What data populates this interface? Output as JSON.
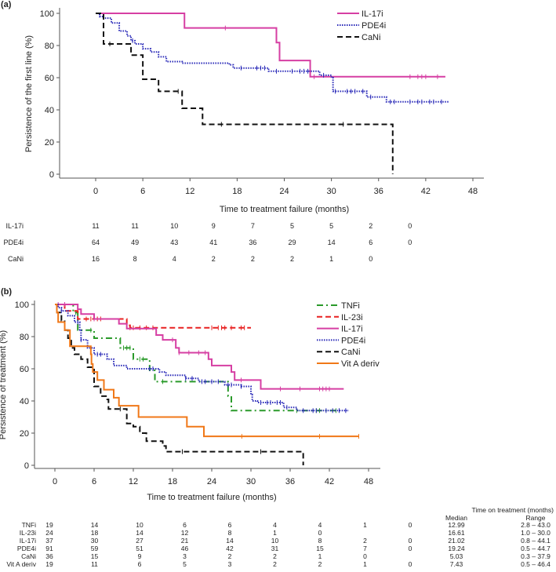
{
  "chart_data": [
    {
      "type": "line",
      "panel_label": "(a)",
      "title": "",
      "xlabel": "Time to treatment failure (months)",
      "ylabel": "Persistence of the first line (%)",
      "xlim": [
        0,
        48
      ],
      "ylim": [
        0,
        100
      ],
      "xticks": [
        0,
        6,
        12,
        18,
        24,
        30,
        36,
        42,
        48
      ],
      "yticks": [
        0,
        20,
        40,
        60,
        80,
        100
      ],
      "legend_position": "top-right",
      "series": [
        {
          "name": "IL-17i",
          "color": "#d63fa3",
          "dash": "solid",
          "end": 44.5,
          "steps": [
            [
              0,
              100
            ],
            [
              11.3,
              90.9
            ],
            [
              23,
              81.8
            ],
            [
              23.4,
              70.7
            ],
            [
              27.3,
              60.6
            ]
          ],
          "censored": [
            16.5,
            27.8,
            40,
            41,
            41.5,
            42,
            43.5
          ]
        },
        {
          "name": "PDE4i",
          "color": "#2a2ab8",
          "dash": "dotted",
          "end": 45,
          "steps": [
            [
              0,
              100
            ],
            [
              0.5,
              98
            ],
            [
              1,
              97
            ],
            [
              2,
              94
            ],
            [
              3,
              89
            ],
            [
              4,
              86
            ],
            [
              4.5,
              83
            ],
            [
              5,
              81
            ],
            [
              6,
              78
            ],
            [
              7,
              76
            ],
            [
              8,
              73
            ],
            [
              9,
              70
            ],
            [
              11,
              69
            ],
            [
              17,
              68
            ],
            [
              17.5,
              66
            ],
            [
              22,
              64
            ],
            [
              28.5,
              61.5
            ],
            [
              30,
              60
            ],
            [
              30.2,
              51.5
            ],
            [
              34.5,
              48
            ],
            [
              37,
              45
            ]
          ],
          "censored": [
            4.7,
            18.5,
            20.5,
            21,
            21.5,
            23,
            25,
            26,
            26.5,
            27,
            29,
            30.5,
            32,
            32.5,
            33,
            34,
            35,
            37.5,
            38,
            40,
            41,
            41.5,
            42.5,
            43,
            44
          ]
        },
        {
          "name": "CaNi",
          "color": "#111111",
          "dash": "dashed",
          "end": 37.8,
          "steps": [
            [
              0,
              100
            ],
            [
              1,
              81
            ],
            [
              4.5,
              74
            ],
            [
              6,
              59
            ],
            [
              8,
              51.5
            ],
            [
              11,
              41
            ],
            [
              13.6,
              31
            ],
            [
              37.8,
              0
            ]
          ],
          "censored": [
            1.8,
            10.5,
            16,
            31.5
          ]
        }
      ],
      "at_risk": {
        "times": [
          0,
          6,
          12,
          18,
          24,
          30,
          36,
          42,
          48
        ],
        "rows": [
          {
            "label": "IL-17i",
            "values": [
              "11",
              "11",
              "10",
              "9",
              "7",
              "5",
              "5",
              "2",
              "0"
            ]
          },
          {
            "label": "PDE4i",
            "values": [
              "64",
              "49",
              "43",
              "41",
              "36",
              "29",
              "14",
              "6",
              "0"
            ]
          },
          {
            "label": "CaNi",
            "values": [
              "16",
              "8",
              "4",
              "2",
              "2",
              "2",
              "1",
              "0",
              ""
            ]
          }
        ]
      }
    },
    {
      "type": "line",
      "panel_label": "(b)",
      "title": "",
      "xlabel": "Time to treatment failure (months)",
      "ylabel": "Persistence of treatment (%)",
      "xlim": [
        0,
        48
      ],
      "ylim": [
        0,
        100
      ],
      "xticks": [
        0,
        6,
        12,
        18,
        24,
        30,
        36,
        42,
        48
      ],
      "yticks": [
        0,
        20,
        40,
        60,
        80,
        100
      ],
      "legend_position": "top-right",
      "series": [
        {
          "name": "TNFi",
          "color": "#2a9a2a",
          "dash": "dashdot",
          "end": 43,
          "steps": [
            [
              0,
              100
            ],
            [
              2.8,
              95
            ],
            [
              3.5,
              84
            ],
            [
              6,
              79
            ],
            [
              10,
              73
            ],
            [
              12,
              66
            ],
            [
              14.5,
              59
            ],
            [
              15.3,
              52
            ],
            [
              26.5,
              43
            ],
            [
              27,
              34
            ]
          ],
          "censored": [
            3.2,
            5.5,
            10.5,
            11,
            11.5,
            13,
            13.5,
            16.5,
            37,
            40,
            40.5,
            43
          ]
        },
        {
          "name": "IL-23i",
          "color": "#e82020",
          "dash": "dashed",
          "end": 30,
          "steps": [
            [
              0,
              100
            ],
            [
              1.5,
              96
            ],
            [
              3.5,
              91
            ],
            [
              11,
              87
            ],
            [
              11.5,
              85.5
            ]
          ],
          "censored": [
            4.8,
            5.5,
            6.5,
            7,
            11.5,
            12,
            13,
            14,
            15,
            24,
            25,
            25.5,
            26,
            27,
            28.5,
            29
          ]
        },
        {
          "name": "IL-17i",
          "color": "#d63fa3",
          "dash": "solid",
          "end": 44.2,
          "steps": [
            [
              0,
              100
            ],
            [
              3.5,
              97
            ],
            [
              4,
              94
            ],
            [
              6,
              91
            ],
            [
              9.8,
              88
            ],
            [
              11,
              85
            ],
            [
              15.5,
              81
            ],
            [
              16.5,
              78
            ],
            [
              18.5,
              73
            ],
            [
              19,
              70
            ],
            [
              23.5,
              66
            ],
            [
              24,
              62
            ],
            [
              27,
              58
            ],
            [
              27.5,
              53
            ],
            [
              31.5,
              47.5
            ]
          ],
          "censored": [
            0.5,
            1.5,
            6,
            18,
            19,
            20.5,
            22,
            23,
            28.5,
            34.5,
            37.5,
            40.5,
            41,
            41.5,
            42
          ]
        },
        {
          "name": "PDE4i",
          "color": "#2a2ab8",
          "dash": "dotted",
          "end": 45,
          "steps": [
            [
              0,
              100
            ],
            [
              0.5,
              98
            ],
            [
              1,
              96
            ],
            [
              2,
              93
            ],
            [
              3,
              89
            ],
            [
              3.8,
              84
            ],
            [
              4,
              78
            ],
            [
              5,
              73
            ],
            [
              6,
              69
            ],
            [
              8,
              66
            ],
            [
              9,
              62
            ],
            [
              11,
              60
            ],
            [
              16,
              58
            ],
            [
              17,
              56
            ],
            [
              20,
              54
            ],
            [
              22,
              52
            ],
            [
              26,
              50
            ],
            [
              28.5,
              49
            ],
            [
              30,
              44
            ],
            [
              30.2,
              40
            ],
            [
              31,
              39
            ],
            [
              35,
              36
            ],
            [
              37,
              34
            ]
          ],
          "censored": [
            1,
            3.5,
            4,
            6.5,
            7,
            14.5,
            15,
            20,
            21,
            22.5,
            23,
            24,
            25,
            26.5,
            27,
            28.5,
            31.5,
            32.5,
            33,
            34,
            34.5,
            35.5,
            38,
            39.5,
            40,
            41.5,
            42.5,
            43.5,
            44.5
          ]
        },
        {
          "name": "CaNi",
          "color": "#111111",
          "dash": "dashed",
          "end": 38,
          "steps": [
            [
              0,
              100
            ],
            [
              0.3,
              95
            ],
            [
              1,
              90
            ],
            [
              1.5,
              84
            ],
            [
              2,
              79
            ],
            [
              2.5,
              73
            ],
            [
              3,
              69
            ],
            [
              4,
              66
            ],
            [
              5,
              61
            ],
            [
              6,
              49
            ],
            [
              7,
              43
            ],
            [
              8,
              41
            ],
            [
              8.2,
              35
            ],
            [
              11,
              26
            ],
            [
              12,
              24
            ],
            [
              13,
              20
            ],
            [
              14,
              15
            ],
            [
              16.5,
              12
            ],
            [
              17,
              8.5
            ],
            [
              38,
              0
            ]
          ],
          "censored": [
            10,
            19.5,
            31.5
          ]
        },
        {
          "name": "Vit A deriv",
          "color": "#f07818",
          "dash": "solid",
          "end": 46.5,
          "steps": [
            [
              0,
              100
            ],
            [
              0.3,
              95
            ],
            [
              0.5,
              89
            ],
            [
              1.5,
              84
            ],
            [
              2.3,
              74
            ],
            [
              5.5,
              69
            ],
            [
              5.6,
              63
            ],
            [
              5.8,
              58
            ],
            [
              6.5,
              53
            ],
            [
              7.5,
              47
            ],
            [
              9,
              42
            ],
            [
              9.8,
              37
            ],
            [
              12.8,
              30
            ],
            [
              20.2,
              24
            ],
            [
              22.8,
              18
            ]
          ],
          "censored": [
            28.6,
            40.5,
            46.5
          ]
        }
      ],
      "at_risk": {
        "times": [
          0,
          6,
          12,
          18,
          24,
          30,
          36,
          42,
          48
        ],
        "rows": [
          {
            "label": "TNFi",
            "values": [
              "19",
              "14",
              "10",
              "6",
              "6",
              "4",
              "4",
              "1",
              "0"
            ],
            "median": "12.99",
            "range": "2.8 – 43.0"
          },
          {
            "label": "IL-23i",
            "values": [
              "24",
              "18",
              "14",
              "12",
              "8",
              "1",
              "0",
              "",
              ""
            ],
            "median": "16.61",
            "range": "1.0 – 30.0"
          },
          {
            "label": "IL-17i",
            "values": [
              "37",
              "30",
              "27",
              "21",
              "14",
              "10",
              "8",
              "2",
              "0"
            ],
            "median": "21.02",
            "range": "0.8 – 44.1"
          },
          {
            "label": "PDE4i",
            "values": [
              "91",
              "59",
              "51",
              "46",
              "42",
              "31",
              "15",
              "7",
              "0"
            ],
            "median": "19.24",
            "range": "0.5 – 44.7"
          },
          {
            "label": "CaNi",
            "values": [
              "36",
              "15",
              "9",
              "3",
              "2",
              "2",
              "1",
              "0",
              ""
            ],
            "median": "5.03",
            "range": "0.3 – 37.9"
          },
          {
            "label": "Vit A deriv",
            "values": [
              "19",
              "11",
              "6",
              "5",
              "3",
              "2",
              "2",
              "1",
              "0"
            ],
            "median": "7.43",
            "range": "0.5 – 46.4"
          }
        ],
        "summary_header": "Time on treatment (months)",
        "median_header": "Median",
        "range_header": "Range"
      }
    }
  ]
}
